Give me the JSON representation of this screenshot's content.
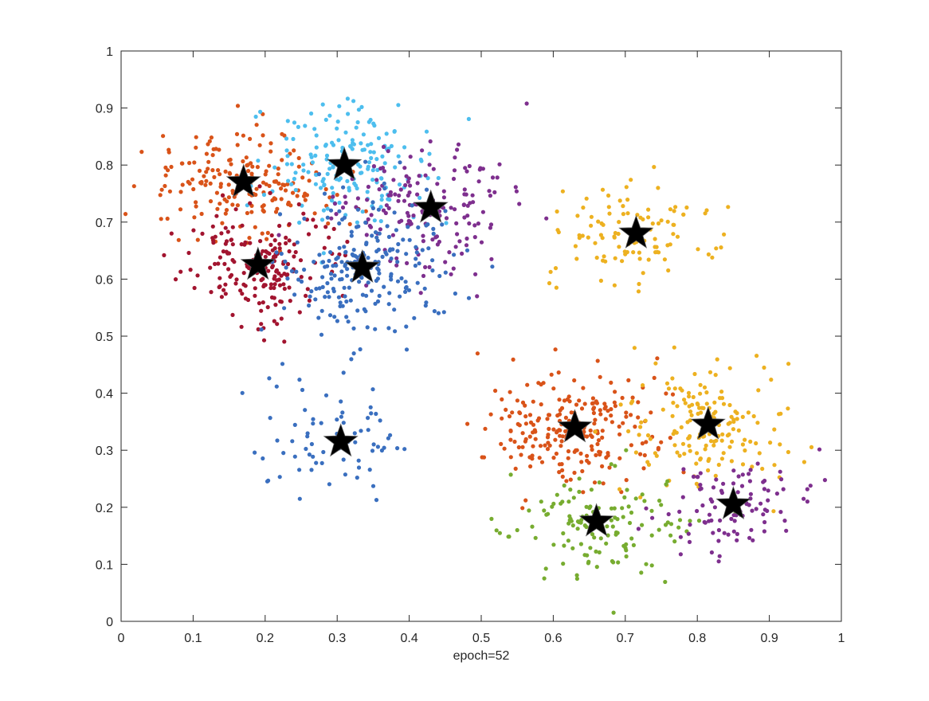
{
  "chart_data": {
    "type": "scatter",
    "title": "",
    "xlabel": "epoch=52",
    "ylabel": "",
    "xlim": [
      0,
      1
    ],
    "ylim": [
      0,
      1
    ],
    "grid": false,
    "legend": "none",
    "xticks": [
      "0",
      "0.1",
      "0.2",
      "0.3",
      "0.4",
      "0.5",
      "0.6",
      "0.7",
      "0.8",
      "0.9",
      "1"
    ],
    "yticks": [
      "0",
      "0.1",
      "0.2",
      "0.3",
      "0.4",
      "0.5",
      "0.6",
      "0.7",
      "0.8",
      "0.9",
      "1"
    ],
    "clusters": [
      {
        "color": "#D95319",
        "center": [
          0.17,
          0.77
        ],
        "sx": 0.06,
        "sy": 0.05,
        "n": 190
      },
      {
        "color": "#4DBEEE",
        "center": [
          0.31,
          0.8
        ],
        "sx": 0.055,
        "sy": 0.05,
        "n": 180
      },
      {
        "color": "#7E2F8E",
        "center": [
          0.43,
          0.725
        ],
        "sx": 0.06,
        "sy": 0.06,
        "n": 170
      },
      {
        "color": "#A2142F",
        "center": [
          0.19,
          0.625
        ],
        "sx": 0.055,
        "sy": 0.05,
        "n": 190
      },
      {
        "color": "#3A6FBF",
        "center": [
          0.335,
          0.62
        ],
        "sx": 0.06,
        "sy": 0.065,
        "n": 230
      },
      {
        "color": "#3A6FBF",
        "center": [
          0.305,
          0.315
        ],
        "sx": 0.05,
        "sy": 0.05,
        "n": 70
      },
      {
        "color": "#EDB120",
        "center": [
          0.715,
          0.68
        ],
        "sx": 0.055,
        "sy": 0.045,
        "n": 110
      },
      {
        "color": "#D95319",
        "center": [
          0.63,
          0.34
        ],
        "sx": 0.06,
        "sy": 0.05,
        "n": 230
      },
      {
        "color": "#EDB120",
        "center": [
          0.815,
          0.345
        ],
        "sx": 0.055,
        "sy": 0.055,
        "n": 170
      },
      {
        "color": "#77AC30",
        "center": [
          0.66,
          0.175
        ],
        "sx": 0.06,
        "sy": 0.05,
        "n": 130
      },
      {
        "color": "#7E2F8E",
        "center": [
          0.85,
          0.205
        ],
        "sx": 0.05,
        "sy": 0.045,
        "n": 100
      }
    ],
    "centroids": [
      [
        0.17,
        0.77
      ],
      [
        0.31,
        0.8
      ],
      [
        0.43,
        0.725
      ],
      [
        0.19,
        0.625
      ],
      [
        0.335,
        0.62
      ],
      [
        0.305,
        0.315
      ],
      [
        0.715,
        0.68
      ],
      [
        0.63,
        0.34
      ],
      [
        0.815,
        0.345
      ],
      [
        0.66,
        0.175
      ],
      [
        0.85,
        0.205
      ]
    ]
  }
}
